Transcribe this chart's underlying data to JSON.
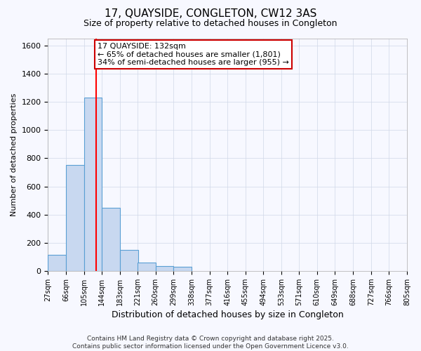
{
  "title": "17, QUAYSIDE, CONGLETON, CW12 3AS",
  "subtitle": "Size of property relative to detached houses in Congleton",
  "xlabel": "Distribution of detached houses by size in Congleton",
  "ylabel": "Number of detached properties",
  "bar_color": "#c8d8f0",
  "bar_edge_color": "#5a9fd4",
  "bin_edges": [
    27,
    66,
    105,
    144,
    183,
    221,
    260,
    299,
    338,
    377,
    416,
    455,
    494,
    533,
    571,
    610,
    649,
    688,
    727,
    766,
    805
  ],
  "bar_heights": [
    115,
    750,
    1230,
    450,
    150,
    60,
    35,
    30,
    0,
    0,
    0,
    0,
    0,
    0,
    0,
    0,
    0,
    0,
    0,
    0
  ],
  "tick_labels": [
    "27sqm",
    "66sqm",
    "105sqm",
    "144sqm",
    "183sqm",
    "221sqm",
    "260sqm",
    "299sqm",
    "338sqm",
    "377sqm",
    "416sqm",
    "455sqm",
    "494sqm",
    "533sqm",
    "571sqm",
    "610sqm",
    "649sqm",
    "688sqm",
    "727sqm",
    "766sqm",
    "805sqm"
  ],
  "red_line_x": 132,
  "annotation_line1": "17 QUAYSIDE: 132sqm",
  "annotation_line2": "← 65% of detached houses are smaller (1,801)",
  "annotation_line3": "34% of semi-detached houses are larger (955) →",
  "annotation_box_color": "#ffffff",
  "annotation_box_edge_color": "#cc0000",
  "ylim": [
    0,
    1650
  ],
  "yticks": [
    0,
    200,
    400,
    600,
    800,
    1000,
    1200,
    1400,
    1600
  ],
  "footer_line1": "Contains HM Land Registry data © Crown copyright and database right 2025.",
  "footer_line2": "Contains public sector information licensed under the Open Government Licence v3.0.",
  "background_color": "#f7f8ff",
  "grid_color": "#d0d8e8",
  "title_fontsize": 11,
  "subtitle_fontsize": 9,
  "axis_label_fontsize": 9,
  "tick_fontsize": 7,
  "ylabel_fontsize": 8,
  "footer_fontsize": 6.5,
  "annotation_fontsize": 8
}
